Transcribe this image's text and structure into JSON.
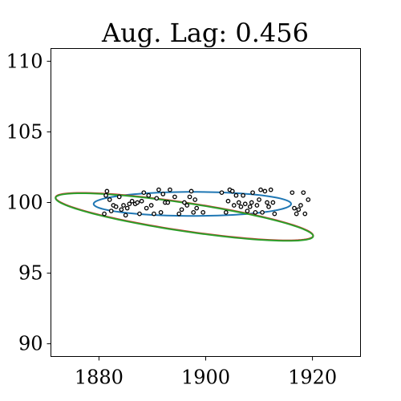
{
  "chart_data": {
    "type": "scatter",
    "title": "Aug. Lag: 0.456",
    "xlabel": "",
    "ylabel": "",
    "xlim": [
      1871,
      1929
    ],
    "ylim": [
      89.1,
      110.9
    ],
    "xticks": [
      1880,
      1900,
      1920
    ],
    "xtick_labels": [
      "1880",
      "1900",
      "1920"
    ],
    "yticks": [
      90,
      95,
      100,
      105,
      110
    ],
    "ytick_labels": [
      "90",
      "95",
      "100",
      "105",
      "110"
    ],
    "grid": false,
    "points": [
      [
        1881.0,
        99.2
      ],
      [
        1881.3,
        100.5
      ],
      [
        1881.5,
        100.8
      ],
      [
        1882.0,
        100.2
      ],
      [
        1882.3,
        99.4
      ],
      [
        1882.7,
        99.8
      ],
      [
        1883.2,
        99.7
      ],
      [
        1883.8,
        100.4
      ],
      [
        1884.2,
        99.5
      ],
      [
        1884.6,
        99.8
      ],
      [
        1885.0,
        99.1
      ],
      [
        1885.3,
        99.6
      ],
      [
        1885.7,
        99.9
      ],
      [
        1886.2,
        100.1
      ],
      [
        1886.8,
        99.9
      ],
      [
        1887.2,
        100.0
      ],
      [
        1887.6,
        99.2
      ],
      [
        1888.0,
        100.1
      ],
      [
        1888.4,
        100.7
      ],
      [
        1888.9,
        99.6
      ],
      [
        1889.3,
        100.5
      ],
      [
        1889.8,
        99.8
      ],
      [
        1890.3,
        99.2
      ],
      [
        1890.8,
        100.3
      ],
      [
        1891.2,
        100.9
      ],
      [
        1891.6,
        99.3
      ],
      [
        1892.0,
        100.6
      ],
      [
        1892.4,
        100.0
      ],
      [
        1892.9,
        100.0
      ],
      [
        1893.3,
        100.9
      ],
      [
        1894.2,
        100.4
      ],
      [
        1895.0,
        99.2
      ],
      [
        1895.5,
        99.5
      ],
      [
        1896.0,
        100.0
      ],
      [
        1896.5,
        99.8
      ],
      [
        1897.0,
        100.4
      ],
      [
        1897.3,
        100.8
      ],
      [
        1897.7,
        99.3
      ],
      [
        1898.0,
        100.2
      ],
      [
        1898.3,
        99.6
      ],
      [
        1899.5,
        99.3
      ],
      [
        1903.0,
        100.7
      ],
      [
        1903.8,
        99.3
      ],
      [
        1904.2,
        100.1
      ],
      [
        1904.5,
        100.9
      ],
      [
        1905.0,
        100.8
      ],
      [
        1905.3,
        99.8
      ],
      [
        1905.7,
        100.5
      ],
      [
        1906.2,
        100.0
      ],
      [
        1906.6,
        99.7
      ],
      [
        1907.0,
        100.5
      ],
      [
        1907.4,
        99.9
      ],
      [
        1907.8,
        99.4
      ],
      [
        1908.3,
        99.7
      ],
      [
        1908.6,
        100.0
      ],
      [
        1908.8,
        100.7
      ],
      [
        1909.3,
        99.3
      ],
      [
        1909.6,
        99.8
      ],
      [
        1910.0,
        100.2
      ],
      [
        1910.3,
        100.9
      ],
      [
        1910.6,
        99.3
      ],
      [
        1911.1,
        100.8
      ],
      [
        1911.5,
        100.0
      ],
      [
        1911.8,
        99.7
      ],
      [
        1912.2,
        100.9
      ],
      [
        1912.6,
        100.0
      ],
      [
        1912.9,
        99.2
      ],
      [
        1916.2,
        100.7
      ],
      [
        1916.6,
        99.6
      ],
      [
        1917.0,
        99.2
      ],
      [
        1917.4,
        99.5
      ],
      [
        1917.8,
        99.8
      ],
      [
        1918.3,
        100.7
      ],
      [
        1918.6,
        99.2
      ],
      [
        1919.2,
        100.2
      ]
    ],
    "ellipses": [
      {
        "color": "#1f77b4",
        "center": [
          1897.5,
          99.9
        ],
        "rx": 18.5,
        "ry": 0.85,
        "angle_deg": 0
      },
      {
        "color": "#d62728",
        "center": [
          1896.0,
          99.0
        ],
        "rx": 24.4,
        "ry": 1.0,
        "angle_deg": -8.5
      },
      {
        "color": "#2ca02c",
        "center": [
          1896.0,
          98.97
        ],
        "rx": 24.4,
        "ry": 1.0,
        "angle_deg": -8.5
      }
    ]
  }
}
